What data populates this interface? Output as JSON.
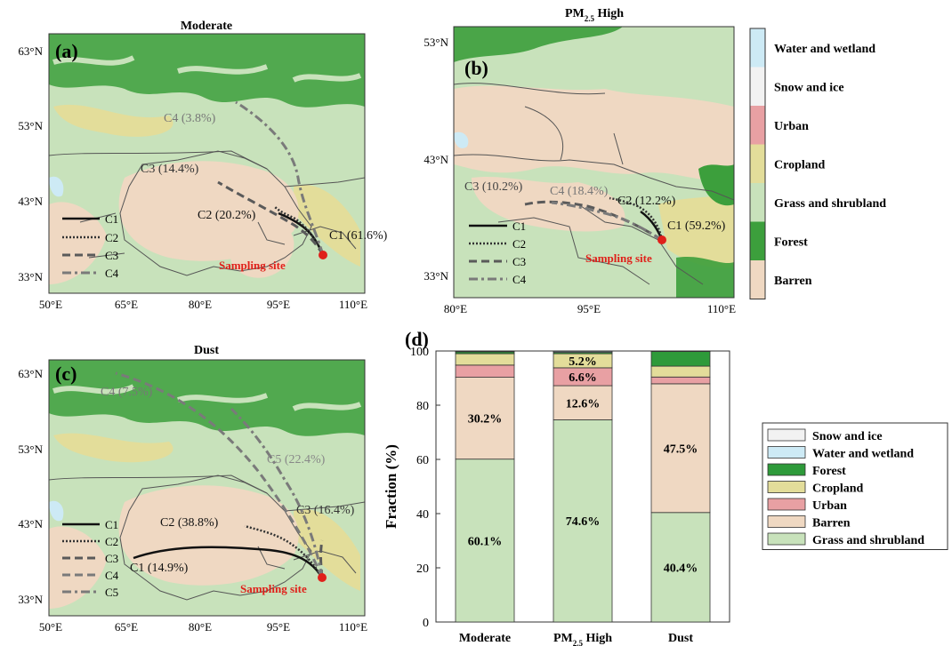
{
  "panels": {
    "a": {
      "letter": "(a)",
      "title": "Moderate",
      "lat_ticks": [
        "63°N",
        "53°N",
        "43°N",
        "33°N"
      ],
      "lon_ticks": [
        "50°E",
        "65°E",
        "80°E",
        "95°E",
        "110°E"
      ],
      "legend": [
        "C1",
        "C2",
        "C3",
        "C4"
      ],
      "labels": [
        "C4 (3.8%)",
        "C3 (14.4%)",
        "C2 (20.2%)",
        "C1 (61.6%)"
      ],
      "site_label": "Sampling site"
    },
    "b": {
      "letter": "(b)",
      "title_main": "PM",
      "title_sub": "2.5",
      "title_rest": " High",
      "lat_ticks": [
        "53°N",
        "43°N",
        "33°N"
      ],
      "lon_ticks": [
        "80°E",
        "95°E",
        "110°E"
      ],
      "legend": [
        "C1",
        "C2",
        "C3",
        "C4"
      ],
      "labels": [
        "C3 (10.2%)",
        "C4 (18.4%)",
        "C2 (12.2%)",
        "C1 (59.2%)"
      ],
      "site_label": "Sampling site"
    },
    "c": {
      "letter": "(c)",
      "title": "Dust",
      "lat_ticks": [
        "63°N",
        "53°N",
        "43°N",
        "33°N"
      ],
      "lon_ticks": [
        "50°E",
        "65°E",
        "80°E",
        "95°E",
        "110°E"
      ],
      "legend": [
        "C1",
        "C2",
        "C3",
        "C4",
        "C5"
      ],
      "labels": [
        "C4 (7.5%)",
        "C5 (22.4%)",
        "C3 (16.4%)",
        "C2 (38.8%)",
        "C1 (14.9%)"
      ],
      "site_label": "Sampling site"
    }
  },
  "landcover_legend": [
    "Water and wetland",
    "Snow and ice",
    "Urban",
    "Cropland",
    "Grass and shrubland",
    "Forest",
    "Barren"
  ],
  "landcover_colors": {
    "Water and wetland": "#cdeaf5",
    "Snow and ice": "#f2f2f2",
    "Urban": "#e8a0a3",
    "Cropland": "#e3dd9a",
    "Grass and shrubland": "#c8e2bb",
    "Forest": "#3c9f3c",
    "Barren": "#efd8c2"
  },
  "chart_data": {
    "type": "bar",
    "stacked": true,
    "panel_letter": "(d)",
    "ylabel": "Fraction (%)",
    "ylim": [
      0,
      100
    ],
    "yticks": [
      "0",
      "20",
      "40",
      "60",
      "80",
      "100"
    ],
    "categories": [
      "Moderate",
      "PM2.5 High",
      "Dust"
    ],
    "category_display": [
      {
        "main": "Moderate",
        "sub": "",
        "rest": ""
      },
      {
        "main": "PM",
        "sub": "2.5",
        "rest": " High"
      },
      {
        "main": "Dust",
        "sub": "",
        "rest": ""
      }
    ],
    "series": [
      {
        "name": "Grass and shrubland",
        "color": "#c8e2bb",
        "values": [
          60.1,
          74.6,
          40.4
        ],
        "labels": [
          "60.1%",
          "74.6%",
          "40.4%"
        ]
      },
      {
        "name": "Barren",
        "color": "#efd8c2",
        "values": [
          30.2,
          12.6,
          47.5
        ],
        "labels": [
          "30.2%",
          "12.6%",
          "47.5%"
        ]
      },
      {
        "name": "Urban",
        "color": "#e8a0a3",
        "values": [
          4.5,
          6.6,
          2.5
        ],
        "labels": [
          "",
          "6.6%",
          ""
        ]
      },
      {
        "name": "Cropland",
        "color": "#e3dd9a",
        "values": [
          4.2,
          5.2,
          4.0
        ],
        "labels": [
          "",
          "5.2%",
          ""
        ]
      },
      {
        "name": "Forest",
        "color": "#2e9a3a",
        "values": [
          0.7,
          0.5,
          5.4
        ],
        "labels": [
          "",
          "",
          ""
        ]
      },
      {
        "name": "Water and wetland",
        "color": "#cdeaf5",
        "values": [
          0.2,
          0.4,
          0.1
        ],
        "labels": [
          "",
          "",
          ""
        ]
      },
      {
        "name": "Snow and ice",
        "color": "#f2f2f2",
        "values": [
          0.1,
          0.1,
          0.1
        ],
        "labels": [
          "",
          "",
          ""
        ]
      }
    ],
    "legend_order": [
      "Snow and ice",
      "Water and wetland",
      "Forest",
      "Cropland",
      "Urban",
      "Barren",
      "Grass and shrubland"
    ]
  }
}
